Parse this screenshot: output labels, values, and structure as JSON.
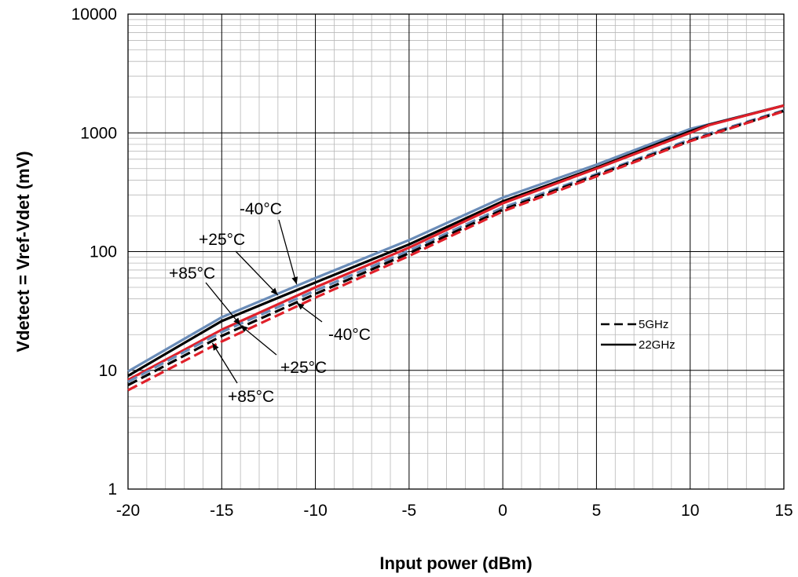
{
  "chart_data": {
    "type": "line",
    "title": "",
    "xlabel": "Input power  (dBm)",
    "ylabel": "Vdetect = Vref-Vdet (mV)",
    "xlim": [
      -20,
      15
    ],
    "ylim": [
      1,
      10000
    ],
    "yscale": "log",
    "grid": true,
    "x_ticks": [
      "-20",
      "-15",
      "-10",
      "-5",
      "0",
      "5",
      "10",
      "15"
    ],
    "y_ticks": [
      "1",
      "10",
      "100",
      "1000",
      "10000"
    ],
    "legend": {
      "placement": "right",
      "entries": [
        {
          "label": "5GHz",
          "style": "dashed"
        },
        {
          "label": "22GHz",
          "style": "solid"
        }
      ]
    },
    "colors": {
      "minus40": "#6a8cb8",
      "plus25": "#000000",
      "plus85": "#e0202a"
    },
    "series": [
      {
        "name": "22GHz -40°C",
        "style": "solid",
        "color_key": "minus40",
        "x": [
          -20,
          -15,
          -10,
          -5,
          0,
          5,
          10,
          11,
          15
        ],
        "y": [
          9.8,
          28,
          60,
          125,
          285,
          540,
          1080,
          1180,
          1700
        ]
      },
      {
        "name": "22GHz +25°C",
        "style": "solid",
        "color_key": "plus25",
        "x": [
          -20,
          -15,
          -10,
          -5,
          0,
          5,
          10,
          11,
          15
        ],
        "y": [
          9.0,
          26,
          55,
          115,
          265,
          510,
          1030,
          1170,
          1700
        ]
      },
      {
        "name": "22GHz +85°C",
        "style": "solid",
        "color_key": "plus85",
        "x": [
          -20,
          -15,
          -10,
          -5,
          0,
          5,
          10,
          11,
          15
        ],
        "y": [
          8.3,
          22,
          50,
          108,
          255,
          500,
          1000,
          1160,
          1700
        ]
      },
      {
        "name": "5GHz -40°C",
        "style": "dashed",
        "color_key": "minus40",
        "x": [
          -20,
          -15,
          -10,
          -5,
          0,
          5,
          10,
          15
        ],
        "y": [
          8.0,
          21,
          47,
          102,
          235,
          450,
          880,
          1550
        ]
      },
      {
        "name": "5GHz +25°C",
        "style": "dashed",
        "color_key": "plus25",
        "x": [
          -20,
          -15,
          -10,
          -5,
          0,
          5,
          10,
          15
        ],
        "y": [
          7.5,
          19.5,
          44,
          97,
          225,
          440,
          860,
          1530
        ]
      },
      {
        "name": "5GHz +85°C",
        "style": "dashed",
        "color_key": "plus85",
        "x": [
          -20,
          -15,
          -10,
          -5,
          0,
          5,
          10,
          15
        ],
        "y": [
          6.8,
          17.5,
          41,
          92,
          218,
          430,
          850,
          1520
        ]
      }
    ],
    "annotations": [
      {
        "text": "-40°C",
        "arrow_to": [
          -11,
          53
        ]
      },
      {
        "text": "+25°C",
        "arrow_to": [
          -12,
          43
        ]
      },
      {
        "text": "+85°C",
        "arrow_to": [
          -14,
          24
        ]
      },
      {
        "text": "-40°C",
        "arrow_to": [
          -11,
          37
        ]
      },
      {
        "text": "+25°C",
        "arrow_to": [
          -14,
          24
        ]
      },
      {
        "text": "+85°C",
        "arrow_to": [
          -15.5,
          17
        ]
      }
    ]
  }
}
